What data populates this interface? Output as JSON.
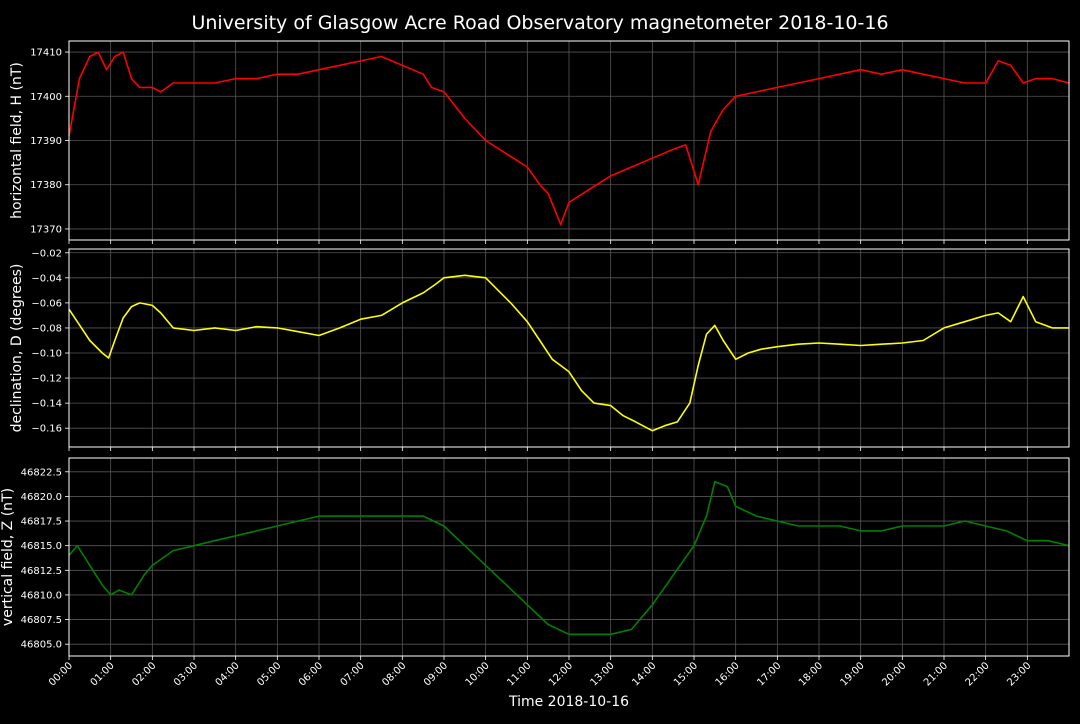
{
  "title": "University of Glasgow Acre Road Observatory magnetometer 2018-10-16",
  "xlabel": "Time 2018-10-16",
  "x_ticks": [
    "00:00",
    "01:00",
    "02:00",
    "03:00",
    "04:00",
    "05:00",
    "06:00",
    "07:00",
    "08:00",
    "09:00",
    "10:00",
    "11:00",
    "12:00",
    "13:00",
    "14:00",
    "15:00",
    "16:00",
    "17:00",
    "18:00",
    "19:00",
    "20:00",
    "21:00",
    "22:00",
    "23:00"
  ],
  "chart_data": [
    {
      "type": "line",
      "ylabel": "horizontal field, H (nT)",
      "color": "#ff0000",
      "xlim": [
        0,
        24
      ],
      "ylim": [
        17367.5,
        17412.5
      ],
      "yticks": [
        17370,
        17380,
        17390,
        17400,
        17410
      ],
      "series": [
        {
          "x": [
            0,
            0.25,
            0.5,
            0.7,
            0.9,
            1.1,
            1.3,
            1.5,
            1.7,
            2.0,
            2.2,
            2.5,
            3.0,
            3.5,
            4.0,
            4.5,
            5.0,
            5.5,
            6.0,
            6.5,
            7.0,
            7.5,
            8.0,
            8.5,
            8.7,
            9.0,
            9.5,
            10.0,
            10.5,
            11.0,
            11.3,
            11.5,
            11.8,
            12.0,
            12.5,
            13.0,
            13.5,
            14.0,
            14.5,
            14.8,
            15.1,
            15.4,
            15.7,
            16.0,
            16.5,
            17.0,
            17.5,
            18.0,
            18.5,
            19.0,
            19.5,
            20.0,
            20.5,
            21.0,
            21.5,
            22.0,
            22.3,
            22.6,
            22.9,
            23.2,
            23.6,
            24.0
          ],
          "y": [
            17391,
            17404,
            17409,
            17410,
            17406,
            17409,
            17410,
            17404,
            17402,
            17402,
            17401,
            17403,
            17403,
            17403,
            17404,
            17404,
            17405,
            17405,
            17406,
            17407,
            17408,
            17409,
            17407,
            17405,
            17402,
            17401,
            17395,
            17390,
            17387,
            17384,
            17380,
            17378,
            17371,
            17376,
            17379,
            17382,
            17384,
            17386,
            17388,
            17389,
            17380,
            17392,
            17397,
            17400,
            17401,
            17402,
            17403,
            17404,
            17405,
            17406,
            17405,
            17406,
            17405,
            17404,
            17403,
            17403,
            17408,
            17407,
            17403,
            17404,
            17404,
            17403
          ]
        }
      ]
    },
    {
      "type": "line",
      "ylabel": "declination, D (degrees)",
      "color": "#ffff00",
      "xlim": [
        0,
        24
      ],
      "ylim": [
        -0.175,
        -0.017
      ],
      "yticks": [
        -0.16,
        -0.14,
        -0.12,
        -0.1,
        -0.08,
        -0.06,
        -0.04,
        -0.02
      ],
      "series": [
        {
          "x": [
            0,
            0.2,
            0.5,
            0.8,
            0.95,
            1.1,
            1.3,
            1.5,
            1.7,
            2.0,
            2.2,
            2.5,
            3.0,
            3.5,
            4.0,
            4.5,
            5.0,
            5.5,
            6.0,
            6.5,
            7.0,
            7.5,
            8.0,
            8.5,
            8.8,
            9.0,
            9.5,
            10.0,
            10.3,
            10.6,
            11.0,
            11.3,
            11.6,
            11.8,
            12.0,
            12.3,
            12.6,
            13.0,
            13.3,
            13.6,
            14.0,
            14.3,
            14.6,
            14.9,
            15.1,
            15.3,
            15.5,
            15.7,
            16.0,
            16.3,
            16.6,
            17.0,
            17.5,
            18.0,
            18.5,
            19.0,
            19.5,
            20.0,
            20.5,
            21.0,
            21.5,
            22.0,
            22.3,
            22.6,
            22.9,
            23.2,
            23.6,
            24.0
          ],
          "y": [
            -0.065,
            -0.075,
            -0.09,
            -0.1,
            -0.104,
            -0.09,
            -0.072,
            -0.063,
            -0.06,
            -0.062,
            -0.068,
            -0.08,
            -0.082,
            -0.08,
            -0.082,
            -0.079,
            -0.08,
            -0.083,
            -0.086,
            -0.08,
            -0.073,
            -0.07,
            -0.06,
            -0.052,
            -0.045,
            -0.04,
            -0.038,
            -0.04,
            -0.05,
            -0.06,
            -0.075,
            -0.09,
            -0.105,
            -0.11,
            -0.115,
            -0.13,
            -0.14,
            -0.142,
            -0.15,
            -0.155,
            -0.162,
            -0.158,
            -0.155,
            -0.14,
            -0.11,
            -0.085,
            -0.078,
            -0.09,
            -0.105,
            -0.1,
            -0.097,
            -0.095,
            -0.093,
            -0.092,
            -0.093,
            -0.094,
            -0.093,
            -0.092,
            -0.09,
            -0.08,
            -0.075,
            -0.07,
            -0.068,
            -0.075,
            -0.055,
            -0.075,
            -0.08,
            -0.08
          ]
        }
      ]
    },
    {
      "type": "line",
      "ylabel": "vertical field, Z (nT)",
      "color": "#008000",
      "xlim": [
        0,
        24
      ],
      "ylim": [
        46803.8,
        46823.9
      ],
      "yticks": [
        46805.0,
        46807.5,
        46810.0,
        46812.5,
        46815.0,
        46817.5,
        46820.0,
        46822.5
      ],
      "series": [
        {
          "x": [
            0,
            0.2,
            0.5,
            0.8,
            1.0,
            1.2,
            1.5,
            1.8,
            2.0,
            2.5,
            3.0,
            3.5,
            4.0,
            4.5,
            5.0,
            5.5,
            6.0,
            6.5,
            7.0,
            7.5,
            8.0,
            8.5,
            9.0,
            9.5,
            10.0,
            10.5,
            11.0,
            11.5,
            12.0,
            12.5,
            13.0,
            13.5,
            14.0,
            14.5,
            15.0,
            15.3,
            15.5,
            15.8,
            16.0,
            16.5,
            17.0,
            17.5,
            18.0,
            18.5,
            19.0,
            19.5,
            20.0,
            20.5,
            21.0,
            21.5,
            22.0,
            22.5,
            23.0,
            23.5,
            24.0
          ],
          "y": [
            46814,
            46815,
            46813,
            46811,
            46810,
            46810.5,
            46810,
            46812,
            46813,
            46814.5,
            46815,
            46815.5,
            46816,
            46816.5,
            46817,
            46817.5,
            46818,
            46818,
            46818,
            46818,
            46818,
            46818,
            46817,
            46815,
            46813,
            46811,
            46809,
            46807,
            46806,
            46806,
            46806,
            46806.5,
            46809,
            46812,
            46815,
            46818,
            46821.5,
            46821,
            46819,
            46818,
            46817.5,
            46817,
            46817,
            46817,
            46816.5,
            46816.5,
            46817,
            46817,
            46817,
            46817.5,
            46817,
            46816.5,
            46815.5,
            46815.5,
            46815
          ]
        }
      ]
    }
  ]
}
